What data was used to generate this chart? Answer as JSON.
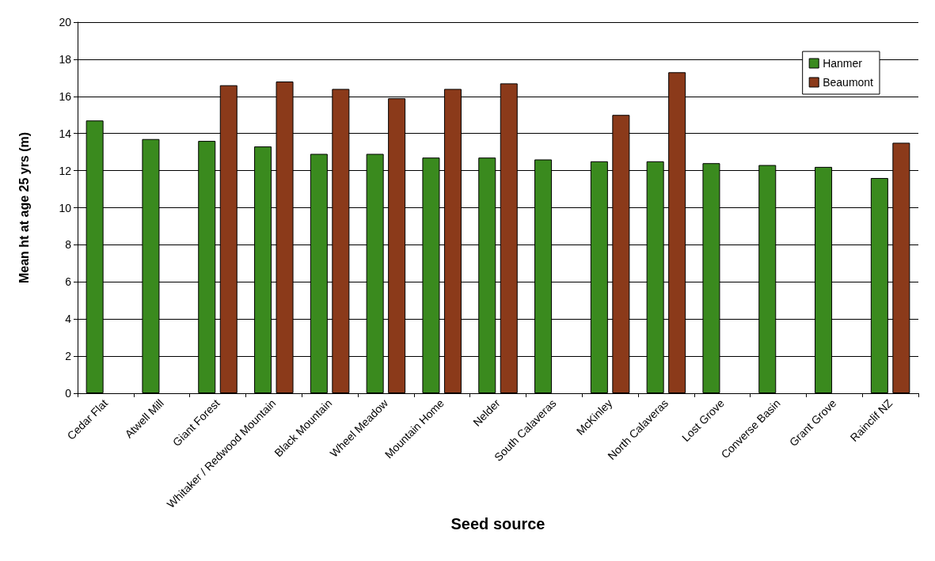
{
  "chart_data": {
    "type": "bar",
    "xlabel": "Seed source",
    "ylabel": "Mean ht at age 25 yrs (m)",
    "categories": [
      "Cedar Flat",
      "Atwell Mill",
      "Giant Forest",
      "Whitaker / Redwood Mountain",
      "Black Mountain",
      "Wheel Meadow",
      "Mountain Home",
      "Nelder",
      "South Calaveras",
      "McKinley",
      "North Calaveras",
      "Lost Grove",
      "Converse Basin",
      "Grant Grove",
      "Rainclif NZ"
    ],
    "series": [
      {
        "name": "Hanmer",
        "color": "#3a8a1e",
        "values": [
          14.7,
          13.7,
          13.6,
          13.3,
          12.9,
          12.9,
          12.7,
          12.7,
          12.6,
          12.5,
          12.5,
          12.4,
          12.3,
          12.2,
          11.6
        ]
      },
      {
        "name": "Beaumont",
        "color": "#8b3a1a",
        "values": [
          null,
          null,
          16.6,
          16.8,
          16.4,
          15.9,
          16.4,
          16.7,
          null,
          15.0,
          17.3,
          null,
          null,
          null,
          13.5
        ]
      }
    ],
    "ylim": [
      0,
      20
    ],
    "yticks": [
      0,
      2,
      4,
      6,
      8,
      10,
      12,
      14,
      16,
      18,
      20
    ],
    "grid": "y",
    "legend": "top right"
  }
}
